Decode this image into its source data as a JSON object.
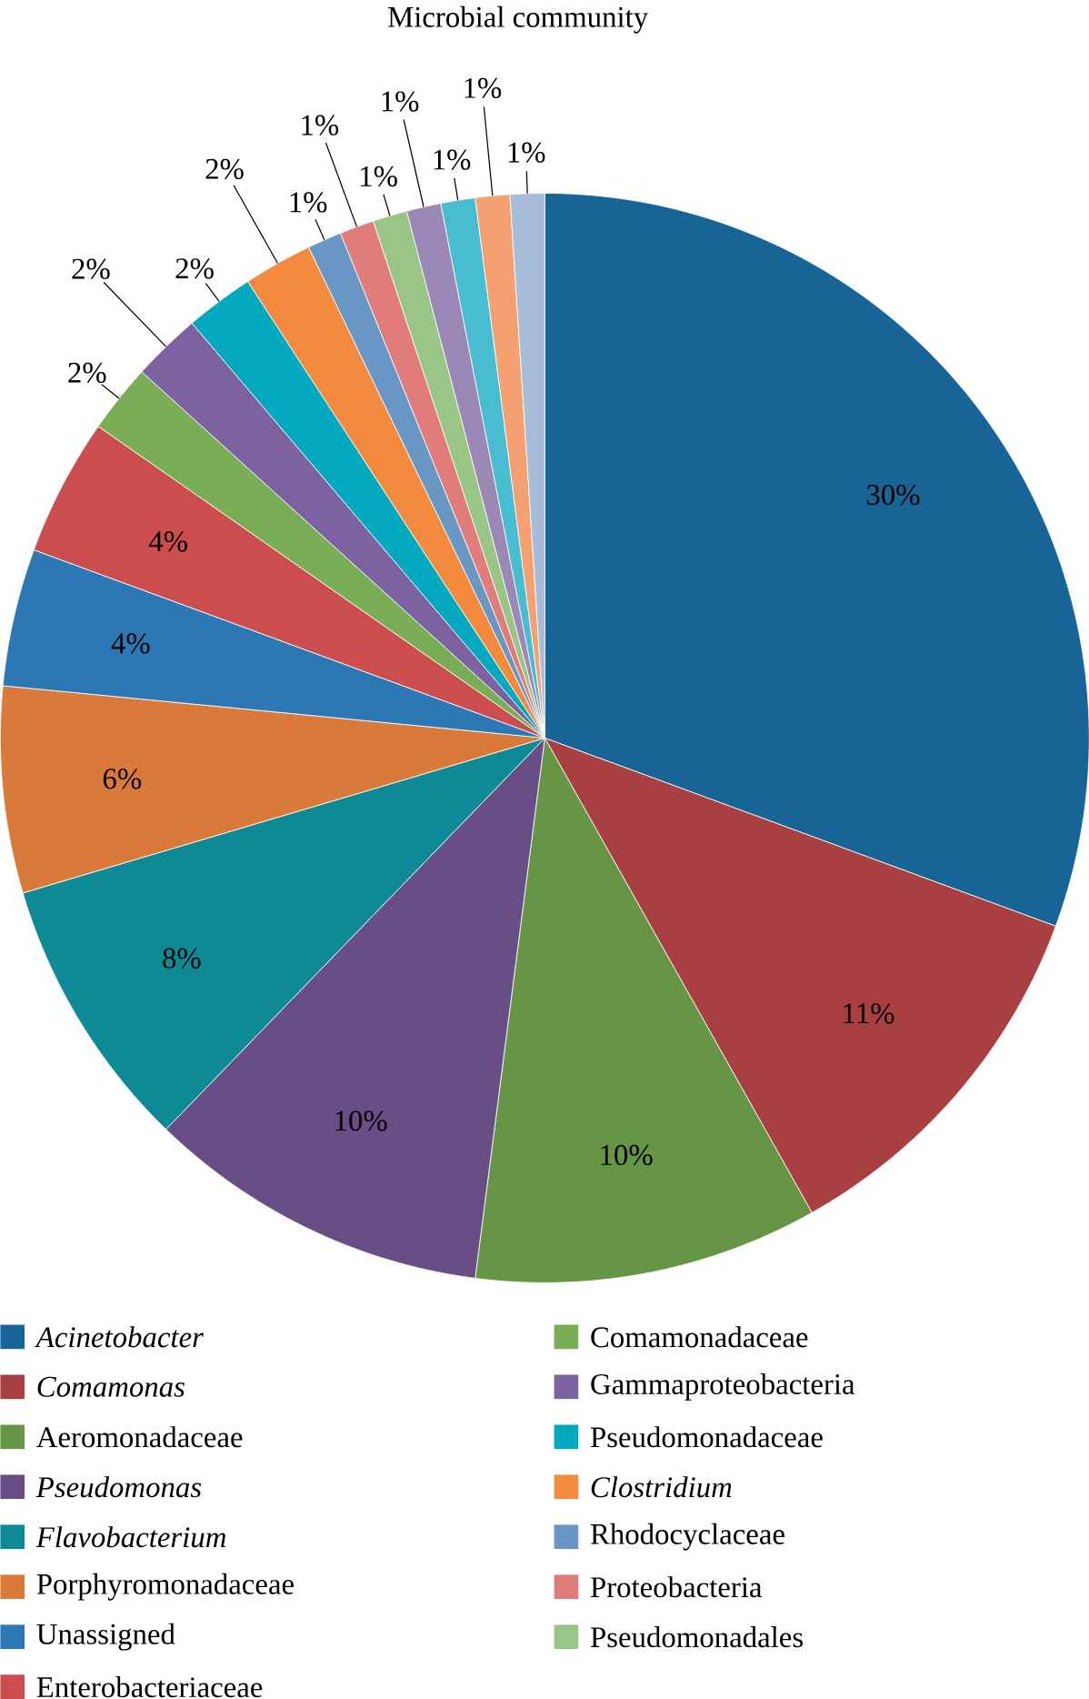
{
  "chart_data": {
    "type": "pie",
    "title": "Microbial community",
    "categories": [
      "*Acinetobacter*",
      "*Comamonas*",
      "Aeromonadaceae",
      "*Pseudomonas*",
      "*Flavobacterium*",
      "Porphyromonadaceae",
      "Unassigned",
      "Enterobacteriaceae",
      "Comamonadaceae",
      "Gammaproteobacteria",
      "Pseudomonadaceae",
      "*Clostridium*",
      "Rhodocyclaceae",
      "Proteobacteria",
      "Pseudomonadales",
      null,
      null,
      null,
      null
    ],
    "values": [
      30,
      11,
      10,
      10,
      8,
      6,
      4,
      4,
      2,
      2,
      2,
      2,
      1,
      1,
      1,
      1,
      1,
      1,
      1
    ],
    "value_labels": [
      "30%",
      "11%",
      "10%",
      "10%",
      "8%",
      "6%",
      "4%",
      "4%",
      "2%",
      "2%",
      "2%",
      "2%",
      "1%",
      "1%",
      "1%",
      "1%",
      "1%",
      "1%",
      "1%"
    ],
    "colors": [
      "#176496",
      "#a84042",
      "#679546",
      "#694e86",
      "#0d8a96",
      "#d9793a",
      "#2b78b4",
      "#cc4d4d",
      "#7aae56",
      "#7c62a0",
      "#03a9bf",
      "#f48a3e",
      "#6897c6",
      "#e07d7b",
      "#99c686",
      "#9b88b6",
      "#48bcd0",
      "#f4a070",
      "#a6bcd8"
    ],
    "legend": "bottom"
  }
}
